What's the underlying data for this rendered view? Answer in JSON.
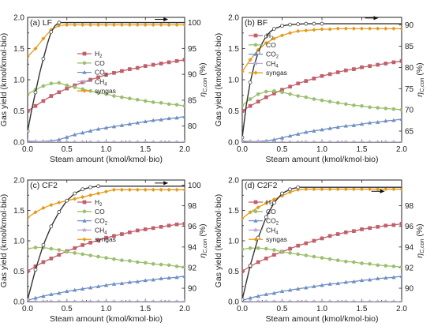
{
  "figure": {
    "axis_labels": {
      "xlabel": "Steam amount (kmol/kmol·bio)",
      "ylabel_left": "Gas yield (kmol/kmol·bio)",
      "ylabel_right": "ηC,con (%)"
    },
    "colors": {
      "H2": "#c0606a",
      "CO": "#9cbf6e",
      "CO2": "#6f8fc3",
      "CH4": "#b7a6d3",
      "syngas": "#e59a1a",
      "carbon_conversion": "#333333",
      "carbon_conversion_markers": "#444444"
    },
    "legend": [
      {
        "key": "H2",
        "label_main": "H",
        "label_sub": "2"
      },
      {
        "key": "CO",
        "label_main": "CO",
        "label_sub": ""
      },
      {
        "key": "CO2",
        "label_main": "CO",
        "label_sub": "2"
      },
      {
        "key": "CH4",
        "label_main": "CH",
        "label_sub": "4"
      },
      {
        "key": "syngas",
        "label_main": "syngas",
        "label_sub": ""
      }
    ]
  },
  "chart_data": [
    {
      "type": "line",
      "title": "(a) LF",
      "xlabel": "Steam amount (kmol/kmol·bio)",
      "ylabel": "Gas yield (kmol/kmol·bio)",
      "ylabel_right": "ηC,con (%)",
      "xlim": [
        0,
        2.0
      ],
      "xticks": [
        0.0,
        0.5,
        1.0,
        1.5,
        2.0
      ],
      "ylim": [
        0,
        2.0
      ],
      "yticks": [
        0.0,
        0.5,
        1.0,
        1.5,
        2.0
      ],
      "ylim_right": [
        76.9,
        101.0
      ],
      "yticks_right": [
        80,
        85,
        90,
        95,
        100
      ],
      "x": [
        0.0,
        0.1,
        0.2,
        0.3,
        0.4,
        0.5,
        0.6,
        0.7,
        0.8,
        0.9,
        1.0,
        1.1,
        1.2,
        1.3,
        1.4,
        1.5,
        1.6,
        1.7,
        1.8,
        1.9,
        2.0
      ],
      "series": [
        {
          "key": "H2",
          "values": [
            0.5,
            0.58,
            0.66,
            0.74,
            0.8,
            0.86,
            0.91,
            0.96,
            1.0,
            1.04,
            1.08,
            1.11,
            1.14,
            1.17,
            1.19,
            1.22,
            1.24,
            1.26,
            1.28,
            1.3,
            1.32
          ]
        },
        {
          "key": "CO",
          "values": [
            0.77,
            0.84,
            0.9,
            0.94,
            0.95,
            0.91,
            0.88,
            0.85,
            0.82,
            0.79,
            0.77,
            0.74,
            0.72,
            0.7,
            0.68,
            0.66,
            0.64,
            0.63,
            0.61,
            0.6,
            0.58
          ]
        },
        {
          "key": "CO2",
          "values": [
            0.01,
            0.01,
            0.01,
            0.02,
            0.04,
            0.08,
            0.12,
            0.15,
            0.18,
            0.21,
            0.23,
            0.25,
            0.27,
            0.29,
            0.31,
            0.33,
            0.35,
            0.36,
            0.38,
            0.39,
            0.41
          ]
        },
        {
          "key": "CH4",
          "values": [
            0.02,
            0.01,
            0.01,
            0.0,
            0.0,
            0.0,
            0.0,
            0.0,
            0.0,
            0.0,
            0.0,
            0.0,
            0.0,
            0.0,
            0.0,
            0.0,
            0.0,
            0.0,
            0.0,
            0.0,
            0.0
          ]
        },
        {
          "key": "syngas",
          "values": [
            1.37,
            1.5,
            1.66,
            1.8,
            1.87,
            1.88,
            1.88,
            1.88,
            1.88,
            1.88,
            1.88,
            1.88,
            1.88,
            1.88,
            1.88,
            1.88,
            1.88,
            1.88,
            1.88,
            1.88,
            1.88
          ]
        }
      ],
      "carbon_conversion": {
        "x": [
          0.0,
          0.05,
          0.1,
          0.15,
          0.2,
          0.25,
          0.3,
          0.35,
          0.4,
          0.5,
          0.6,
          0.8,
          1.0,
          1.2,
          1.4,
          1.6,
          1.8,
          2.0
        ],
        "values": [
          79.0,
          83.0,
          86.5,
          90.0,
          93.0,
          95.8,
          98.2,
          99.4,
          100.0,
          100.0,
          100.0,
          100.0,
          100.0,
          100.0,
          100.0,
          100.0,
          100.0,
          100.0
        ],
        "marker_x": [
          0.0,
          0.1,
          0.2,
          0.3,
          0.4
        ]
      },
      "arrow": {
        "x": 1.62,
        "y_right": 100.0,
        "direction": "right"
      }
    },
    {
      "type": "line",
      "title": "(b) BF",
      "xlabel": "Steam amount (kmol/kmol·bio)",
      "ylabel": "Gas yield (kmol/kmol·bio)",
      "ylabel_right": "ηC,con (%)",
      "xlim": [
        0,
        2.0
      ],
      "xticks": [
        0.0,
        0.5,
        1.0,
        1.5,
        2.0
      ],
      "ylim": [
        0,
        2.0
      ],
      "yticks": [
        0.0,
        0.5,
        1.0,
        1.5,
        2.0
      ],
      "ylim_right": [
        62.4,
        91.8
      ],
      "yticks_right": [
        65,
        70,
        75,
        80,
        85,
        90
      ],
      "x": [
        0.0,
        0.1,
        0.2,
        0.3,
        0.4,
        0.5,
        0.6,
        0.7,
        0.8,
        0.9,
        1.0,
        1.1,
        1.2,
        1.3,
        1.4,
        1.5,
        1.6,
        1.7,
        1.8,
        1.9,
        2.0
      ],
      "series": [
        {
          "key": "H2",
          "values": [
            0.5,
            0.58,
            0.65,
            0.72,
            0.78,
            0.84,
            0.89,
            0.94,
            0.98,
            1.02,
            1.06,
            1.09,
            1.12,
            1.15,
            1.17,
            1.2,
            1.22,
            1.24,
            1.26,
            1.28,
            1.3
          ]
        },
        {
          "key": "CO",
          "values": [
            0.59,
            0.69,
            0.77,
            0.81,
            0.82,
            0.8,
            0.77,
            0.74,
            0.72,
            0.69,
            0.67,
            0.65,
            0.63,
            0.61,
            0.59,
            0.58,
            0.56,
            0.55,
            0.54,
            0.53,
            0.52
          ]
        },
        {
          "key": "CO2",
          "values": [
            0.01,
            0.01,
            0.01,
            0.02,
            0.04,
            0.07,
            0.1,
            0.13,
            0.16,
            0.18,
            0.2,
            0.22,
            0.24,
            0.26,
            0.27,
            0.29,
            0.31,
            0.32,
            0.34,
            0.35,
            0.37
          ]
        },
        {
          "key": "CH4",
          "values": [
            0.02,
            0.01,
            0.01,
            0.0,
            0.0,
            0.0,
            0.0,
            0.0,
            0.0,
            0.0,
            0.0,
            0.0,
            0.0,
            0.0,
            0.0,
            0.0,
            0.0,
            0.0,
            0.0,
            0.0,
            0.0
          ]
        },
        {
          "key": "syngas",
          "values": [
            1.13,
            1.32,
            1.48,
            1.59,
            1.66,
            1.71,
            1.75,
            1.78,
            1.79,
            1.8,
            1.81,
            1.81,
            1.82,
            1.82,
            1.82,
            1.82,
            1.82,
            1.82,
            1.82,
            1.82,
            1.82
          ]
        }
      ],
      "carbon_conversion": {
        "x": [
          0.0,
          0.05,
          0.1,
          0.15,
          0.2,
          0.25,
          0.3,
          0.35,
          0.4,
          0.5,
          0.6,
          0.7,
          0.8,
          0.9,
          1.0,
          1.2,
          1.4,
          1.6,
          1.8,
          2.0
        ],
        "values": [
          63.5,
          71.0,
          76.5,
          80.5,
          83.5,
          85.7,
          87.3,
          88.4,
          89.1,
          89.8,
          90.1,
          90.2,
          90.3,
          90.3,
          90.3,
          90.3,
          90.3,
          90.3,
          90.3,
          90.3
        ],
        "marker_x": [
          0.0,
          0.1,
          0.2,
          0.3,
          0.4,
          0.5,
          0.6,
          0.7,
          0.8,
          0.9,
          1.0
        ]
      },
      "arrow": {
        "x": 1.54,
        "y_right": 90.9,
        "direction": "right"
      }
    },
    {
      "type": "line",
      "title": "(c) CF2",
      "xlabel": "Steam amount (kmol/kmol·bio)",
      "ylabel": "Gas yield (kmol/kmol·bio)",
      "ylabel_right": "ηC,con (%)",
      "xlim": [
        0,
        2.0
      ],
      "xticks": [
        0.0,
        0.5,
        1.0,
        1.5,
        2.0
      ],
      "ylim": [
        0,
        2.0
      ],
      "yticks": [
        0.0,
        0.5,
        1.0,
        1.5,
        2.0
      ],
      "ylim_right": [
        88.7,
        100.5
      ],
      "yticks_right": [
        90,
        92,
        94,
        96,
        98,
        100
      ],
      "x": [
        0.0,
        0.1,
        0.2,
        0.3,
        0.4,
        0.5,
        0.6,
        0.7,
        0.8,
        0.9,
        1.0,
        1.1,
        1.2,
        1.3,
        1.4,
        1.5,
        1.6,
        1.7,
        1.8,
        1.9,
        2.0
      ],
      "series": [
        {
          "key": "H2",
          "values": [
            0.5,
            0.58,
            0.65,
            0.71,
            0.77,
            0.83,
            0.88,
            0.93,
            0.97,
            1.01,
            1.05,
            1.08,
            1.11,
            1.14,
            1.17,
            1.19,
            1.21,
            1.23,
            1.25,
            1.27,
            1.28
          ]
        },
        {
          "key": "CO",
          "values": [
            0.87,
            0.89,
            0.89,
            0.87,
            0.85,
            0.82,
            0.8,
            0.78,
            0.76,
            0.74,
            0.72,
            0.7,
            0.68,
            0.67,
            0.65,
            0.64,
            0.62,
            0.61,
            0.6,
            0.58,
            0.57
          ]
        },
        {
          "key": "CO2",
          "values": [
            0.02,
            0.06,
            0.09,
            0.12,
            0.14,
            0.17,
            0.19,
            0.21,
            0.23,
            0.25,
            0.27,
            0.29,
            0.3,
            0.32,
            0.33,
            0.35,
            0.36,
            0.38,
            0.39,
            0.4,
            0.42
          ]
        },
        {
          "key": "CH4",
          "values": [
            0.01,
            0.0,
            0.0,
            0.0,
            0.0,
            0.0,
            0.0,
            0.0,
            0.0,
            0.0,
            0.0,
            0.0,
            0.0,
            0.0,
            0.0,
            0.0,
            0.0,
            0.0,
            0.0,
            0.0,
            0.0
          ]
        },
        {
          "key": "syngas",
          "values": [
            1.38,
            1.47,
            1.54,
            1.59,
            1.63,
            1.66,
            1.69,
            1.72,
            1.75,
            1.78,
            1.81,
            1.84,
            1.84,
            1.84,
            1.84,
            1.84,
            1.84,
            1.84,
            1.84,
            1.84,
            1.84
          ]
        }
      ],
      "carbon_conversion": {
        "x": [
          0.0,
          0.1,
          0.2,
          0.3,
          0.4,
          0.5,
          0.6,
          0.7,
          0.8,
          0.9,
          1.0,
          1.2,
          1.4,
          1.6,
          1.8,
          2.0
        ],
        "values": [
          88.9,
          91.8,
          94.2,
          96.0,
          97.4,
          98.5,
          99.2,
          99.6,
          99.8,
          99.9,
          99.9,
          99.9,
          99.9,
          99.9,
          99.9,
          99.9
        ],
        "marker_x": [
          0.0,
          0.1,
          0.2,
          0.3,
          0.4,
          0.5,
          0.6,
          0.7,
          0.8,
          0.9
        ]
      },
      "arrow": {
        "x": 1.62,
        "y_right": 99.9,
        "direction": "right"
      }
    },
    {
      "type": "line",
      "title": "(d) C2F2",
      "xlabel": "Steam amount (kmol/kmol·bio)",
      "ylabel": "Gas yield (kmol/kmol·bio)",
      "ylabel_right": "ηC,con (%)",
      "xlim": [
        0,
        2.0
      ],
      "xticks": [
        0.0,
        0.5,
        1.0,
        1.5,
        2.0
      ],
      "ylim": [
        0,
        2.0
      ],
      "yticks": [
        0.0,
        0.5,
        1.0,
        1.5,
        2.0
      ],
      "ylim_right": [
        88.7,
        100.5
      ],
      "yticks_right": [
        90,
        92,
        94,
        96,
        98
      ],
      "x": [
        0.0,
        0.1,
        0.2,
        0.3,
        0.4,
        0.5,
        0.6,
        0.7,
        0.8,
        0.9,
        1.0,
        1.1,
        1.2,
        1.3,
        1.4,
        1.5,
        1.6,
        1.7,
        1.8,
        1.9,
        2.0
      ],
      "series": [
        {
          "key": "H2",
          "values": [
            0.5,
            0.58,
            0.65,
            0.71,
            0.77,
            0.82,
            0.87,
            0.92,
            0.96,
            1.0,
            1.04,
            1.08,
            1.11,
            1.14,
            1.16,
            1.19,
            1.21,
            1.23,
            1.25,
            1.26,
            1.28
          ]
        },
        {
          "key": "CO",
          "values": [
            0.86,
            0.88,
            0.88,
            0.87,
            0.85,
            0.82,
            0.8,
            0.78,
            0.76,
            0.74,
            0.72,
            0.7,
            0.68,
            0.66,
            0.65,
            0.63,
            0.62,
            0.6,
            0.59,
            0.58,
            0.57
          ]
        },
        {
          "key": "CO2",
          "values": [
            0.02,
            0.06,
            0.09,
            0.12,
            0.14,
            0.17,
            0.19,
            0.21,
            0.23,
            0.25,
            0.27,
            0.29,
            0.3,
            0.32,
            0.33,
            0.35,
            0.36,
            0.38,
            0.39,
            0.4,
            0.42
          ]
        },
        {
          "key": "CH4",
          "values": [
            0.01,
            0.0,
            0.0,
            0.0,
            0.0,
            0.0,
            0.0,
            0.0,
            0.0,
            0.0,
            0.0,
            0.0,
            0.0,
            0.0,
            0.0,
            0.0,
            0.0,
            0.0,
            0.0,
            0.0,
            0.0
          ]
        },
        {
          "key": "syngas",
          "values": [
            1.37,
            1.47,
            1.55,
            1.62,
            1.68,
            1.74,
            1.8,
            1.84,
            1.85,
            1.85,
            1.85,
            1.85,
            1.85,
            1.85,
            1.85,
            1.85,
            1.85,
            1.85,
            1.85,
            1.85,
            1.85
          ]
        }
      ],
      "carbon_conversion": {
        "x": [
          0.0,
          0.1,
          0.2,
          0.3,
          0.4,
          0.5,
          0.6,
          0.7,
          0.8,
          1.0,
          1.2,
          1.4,
          1.6,
          1.8,
          2.0
        ],
        "values": [
          88.9,
          92.2,
          94.9,
          96.9,
          98.3,
          99.2,
          99.6,
          99.8,
          99.8,
          99.8,
          99.8,
          99.8,
          99.8,
          99.8,
          99.8
        ],
        "marker_x": [
          0.0,
          0.1,
          0.2,
          0.3,
          0.4,
          0.5,
          0.6,
          0.7
        ]
      },
      "arrow": {
        "x": 1.62,
        "y_right": 99.1,
        "direction": "right"
      }
    }
  ]
}
